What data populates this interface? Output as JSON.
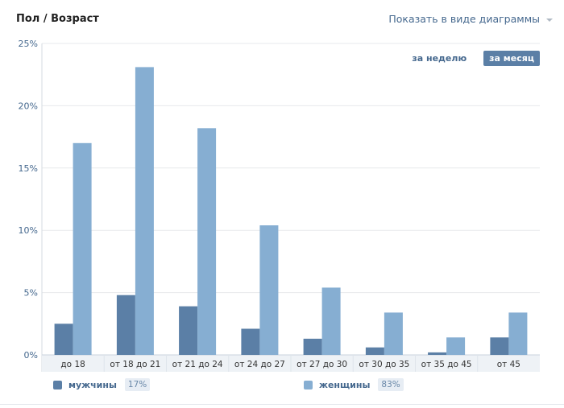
{
  "header": {
    "title": "Пол / Возраст",
    "view_toggle_label": "Показать в виде диаграммы"
  },
  "period": {
    "week_label": "за неделю",
    "month_label": "за месяц",
    "active": "month"
  },
  "legend": {
    "men_label": "мужчины",
    "men_percent": "17%",
    "women_label": "женщины",
    "women_percent": "83%"
  },
  "colors": {
    "men": "#5b7fa6",
    "women": "#86aed2",
    "grid": "#e7e9ec",
    "axis_text": "#45688e",
    "plot_bg": "#ffffff",
    "tick_band": "#eef2f6"
  },
  "chart_data": {
    "type": "bar",
    "categories": [
      "до 18",
      "от 18 до 21",
      "от 21 до 24",
      "от 24 до 27",
      "от 27 до 30",
      "от 30 до 35",
      "от 35 до 45",
      "от 45"
    ],
    "series": [
      {
        "name": "мужчины",
        "values": [
          2.5,
          4.8,
          3.9,
          2.1,
          1.3,
          0.6,
          0.2,
          1.4
        ]
      },
      {
        "name": "женщины",
        "values": [
          17.0,
          23.1,
          18.2,
          10.4,
          5.4,
          3.4,
          1.4,
          3.4
        ]
      }
    ],
    "ylim": [
      0,
      25
    ],
    "yticks": [
      "0%",
      "5%",
      "10%",
      "15%",
      "20%",
      "25%"
    ],
    "grid": true
  }
}
